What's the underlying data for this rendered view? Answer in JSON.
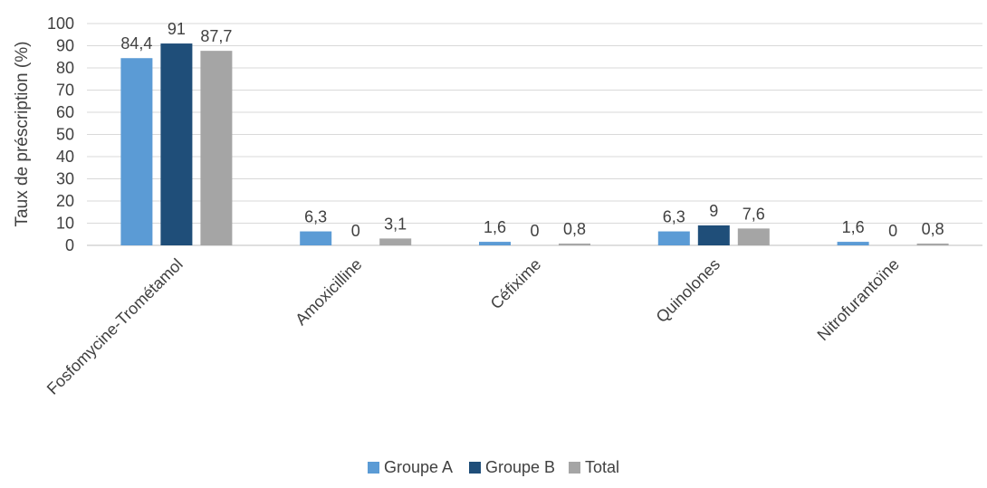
{
  "chart_data": {
    "type": "bar",
    "ylabel": "Taux de préscription (%)",
    "ylim": [
      0,
      100
    ],
    "ytick_step": 10,
    "grid": true,
    "legend_position": "bottom",
    "categories": [
      "Fosfomycine-Trométamol",
      "Amoxicilline",
      "Céfixime",
      "Quinolones",
      "Nitrofurantoïne"
    ],
    "series": [
      {
        "name": "Groupe A",
        "color": "#5B9BD5",
        "values": [
          84.4,
          6.3,
          1.6,
          6.3,
          1.6
        ]
      },
      {
        "name": "Groupe B",
        "color": "#1F4E79",
        "values": [
          91,
          0,
          0,
          9,
          0
        ]
      },
      {
        "name": "Total",
        "color": "#A5A5A5",
        "values": [
          87.7,
          3.1,
          0.8,
          7.6,
          0.8
        ]
      }
    ],
    "data_labels": [
      [
        "84,4",
        "6,3",
        "1,6",
        "6,3",
        "1,6"
      ],
      [
        "91",
        "0",
        "0",
        "9",
        "0"
      ],
      [
        "87,7",
        "3,1",
        "0,8",
        "7,6",
        "0,8"
      ]
    ]
  }
}
